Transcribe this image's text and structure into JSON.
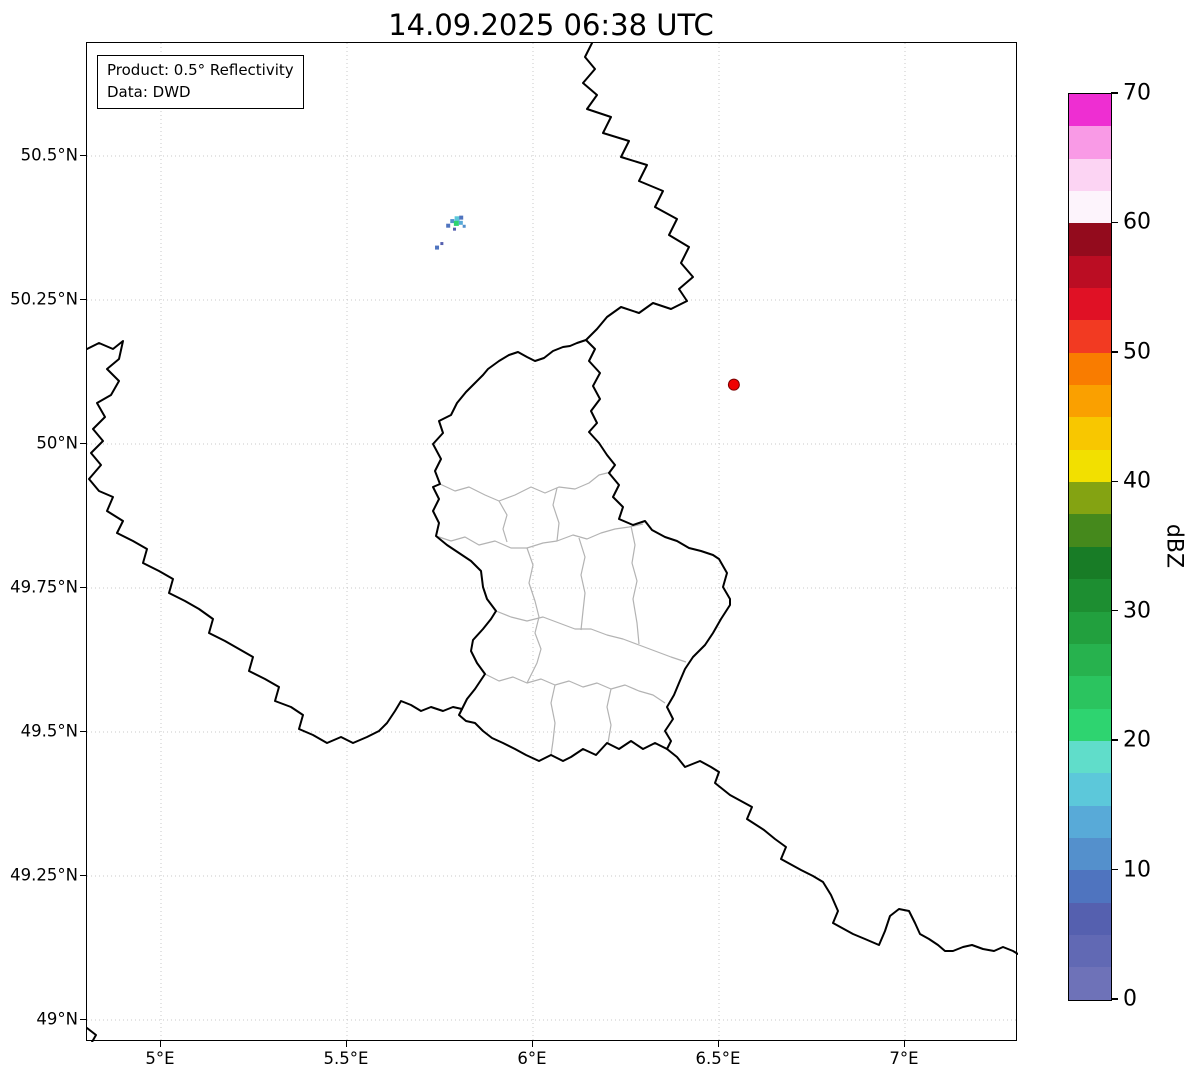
{
  "title": "14.09.2025 06:38 UTC",
  "info_box": {
    "product": "Product: 0.5° Reflectivity",
    "source": "Data: DWD"
  },
  "axes": {
    "x_ticks": [
      {
        "label": "5°E",
        "lon": 5.0
      },
      {
        "label": "5.5°E",
        "lon": 5.5
      },
      {
        "label": "6°E",
        "lon": 6.0
      },
      {
        "label": "6.5°E",
        "lon": 6.5
      },
      {
        "label": "7°E",
        "lon": 7.0
      }
    ],
    "y_ticks": [
      {
        "label": "50.5°N",
        "lat": 50.5
      },
      {
        "label": "50.25°N",
        "lat": 50.25
      },
      {
        "label": "50°N",
        "lat": 50.0
      },
      {
        "label": "49.75°N",
        "lat": 49.75
      },
      {
        "label": "49.5°N",
        "lat": 49.5
      },
      {
        "label": "49.25°N",
        "lat": 49.25
      },
      {
        "label": "49°N",
        "lat": 49.0
      }
    ]
  },
  "colorbar": {
    "label": "dBZ",
    "min": 0,
    "max": 70,
    "tick_values": [
      0,
      10,
      20,
      30,
      40,
      50,
      60,
      70
    ],
    "segments": [
      {
        "from": 0,
        "to": 2.5,
        "color": "#6e72b8"
      },
      {
        "from": 2.5,
        "to": 5,
        "color": "#6169b4"
      },
      {
        "from": 5,
        "to": 7.5,
        "color": "#5560af"
      },
      {
        "from": 7.5,
        "to": 10,
        "color": "#4f74bf"
      },
      {
        "from": 10,
        "to": 12.5,
        "color": "#5490cc"
      },
      {
        "from": 12.5,
        "to": 15,
        "color": "#58aad8"
      },
      {
        "from": 15,
        "to": 17.5,
        "color": "#5cc8da"
      },
      {
        "from": 17.5,
        "to": 20,
        "color": "#60ddca"
      },
      {
        "from": 20,
        "to": 22.5,
        "color": "#2ed470"
      },
      {
        "from": 22.5,
        "to": 25,
        "color": "#2bc45f"
      },
      {
        "from": 25,
        "to": 27.5,
        "color": "#27b24e"
      },
      {
        "from": 27.5,
        "to": 30,
        "color": "#22a03e"
      },
      {
        "from": 30,
        "to": 32.5,
        "color": "#1d8e31"
      },
      {
        "from": 32.5,
        "to": 35,
        "color": "#187c26"
      },
      {
        "from": 35,
        "to": 37.5,
        "color": "#45891c"
      },
      {
        "from": 37.5,
        "to": 40,
        "color": "#84a312"
      },
      {
        "from": 40,
        "to": 42.5,
        "color": "#f2e000"
      },
      {
        "from": 42.5,
        "to": 45,
        "color": "#f8c700"
      },
      {
        "from": 45,
        "to": 47.5,
        "color": "#faa000"
      },
      {
        "from": 47.5,
        "to": 50,
        "color": "#f97c00"
      },
      {
        "from": 50,
        "to": 52.5,
        "color": "#f23a22"
      },
      {
        "from": 52.5,
        "to": 55,
        "color": "#e01125"
      },
      {
        "from": 55,
        "to": 57.5,
        "color": "#bb0d23"
      },
      {
        "from": 57.5,
        "to": 60,
        "color": "#930b1d"
      },
      {
        "from": 60,
        "to": 62.5,
        "color": "#fdf4fc"
      },
      {
        "from": 62.5,
        "to": 65,
        "color": "#fcd4f3"
      },
      {
        "from": 65,
        "to": 67.5,
        "color": "#f99ae6"
      },
      {
        "from": 67.5,
        "to": 70,
        "color": "#ee2ed2"
      }
    ]
  },
  "map": {
    "border_color": "#000000",
    "district_border_color": "#b3b3b3",
    "grid_color": "#c9c9c9",
    "radar_marker": {
      "lon": 6.54,
      "lat": 50.103,
      "color": "#f00000"
    },
    "echoes": [
      {
        "lon": 5.783,
        "lat": 50.387,
        "color": "#5490cc",
        "size": 4
      },
      {
        "lon": 5.796,
        "lat": 50.391,
        "color": "#5cc8da",
        "size": 5
      },
      {
        "lon": 5.807,
        "lat": 50.393,
        "color": "#4f74bf",
        "size": 4
      },
      {
        "lon": 5.794,
        "lat": 50.383,
        "color": "#2ed470",
        "size": 5
      },
      {
        "lon": 5.806,
        "lat": 50.384,
        "color": "#58aad8",
        "size": 4
      },
      {
        "lon": 5.772,
        "lat": 50.379,
        "color": "#4f74bf",
        "size": 4
      },
      {
        "lon": 5.789,
        "lat": 50.373,
        "color": "#5560af",
        "size": 3
      },
      {
        "lon": 5.815,
        "lat": 50.378,
        "color": "#5490cc",
        "size": 3
      },
      {
        "lon": 5.742,
        "lat": 50.341,
        "color": "#4f74bf",
        "size": 4
      },
      {
        "lon": 5.755,
        "lat": 50.348,
        "color": "#5560af",
        "size": 3
      }
    ]
  }
}
